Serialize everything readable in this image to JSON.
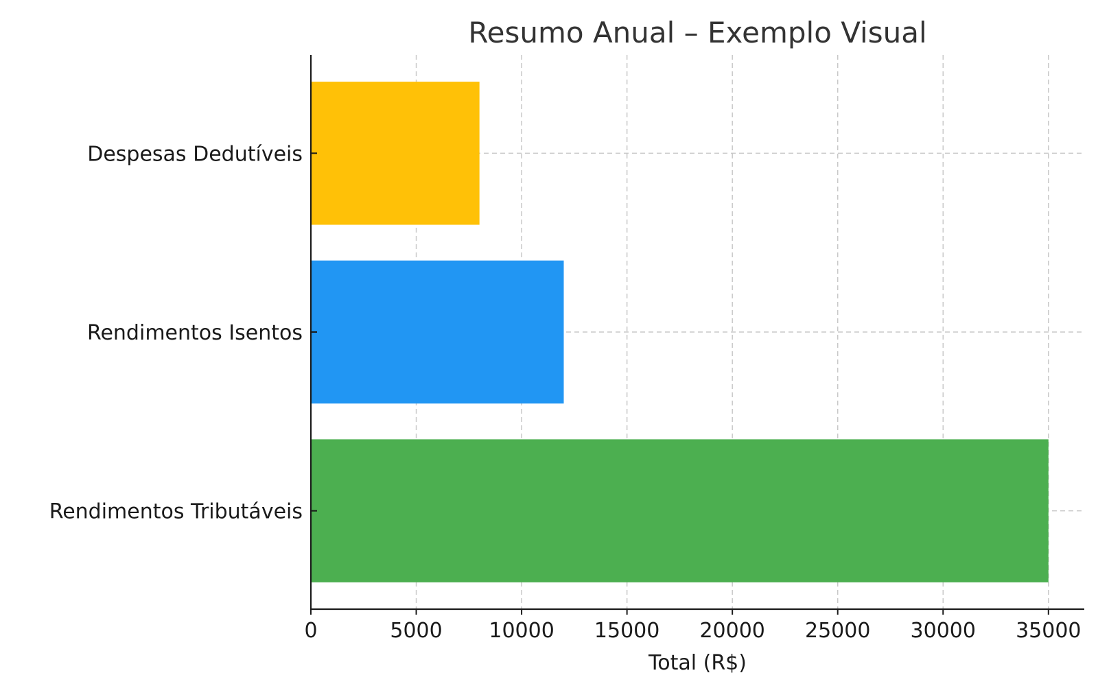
{
  "chart_data": {
    "type": "bar",
    "orientation": "horizontal",
    "title": "Resumo Anual – Exemplo Visual",
    "xlabel": "Total (R$)",
    "ylabel": "",
    "categories": [
      "Rendimentos Tributáveis",
      "Rendimentos Isentos",
      "Despesas Dedutíveis"
    ],
    "values": [
      35000,
      12000,
      8000
    ],
    "colors": [
      "#4caf50",
      "#2196f3",
      "#ffc107"
    ],
    "xlim": [
      0,
      36700
    ],
    "xticks": [
      0,
      5000,
      10000,
      15000,
      20000,
      25000,
      30000,
      35000
    ],
    "grid": true,
    "legend": "none"
  }
}
